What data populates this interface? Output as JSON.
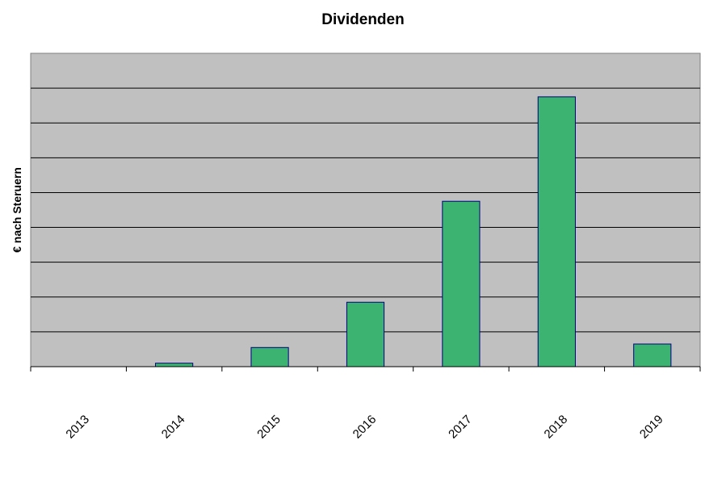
{
  "chart_data": {
    "type": "bar",
    "title": "Dividenden",
    "xlabel": "",
    "ylabel": "€ nach Steruern",
    "categories": [
      "2013",
      "2014",
      "2015",
      "2016",
      "2017",
      "2018",
      "2019"
    ],
    "values": [
      0,
      1,
      5.5,
      18.5,
      47.5,
      77.5,
      6.5
    ],
    "ylim": [
      0,
      90
    ],
    "y_gridlines": 9,
    "grid": true,
    "legend": "none",
    "colors": {
      "bar_fill": "#3CB371",
      "bar_stroke": "#000080",
      "plot_background": "#C0C0C0",
      "gridline": "#000000"
    }
  }
}
